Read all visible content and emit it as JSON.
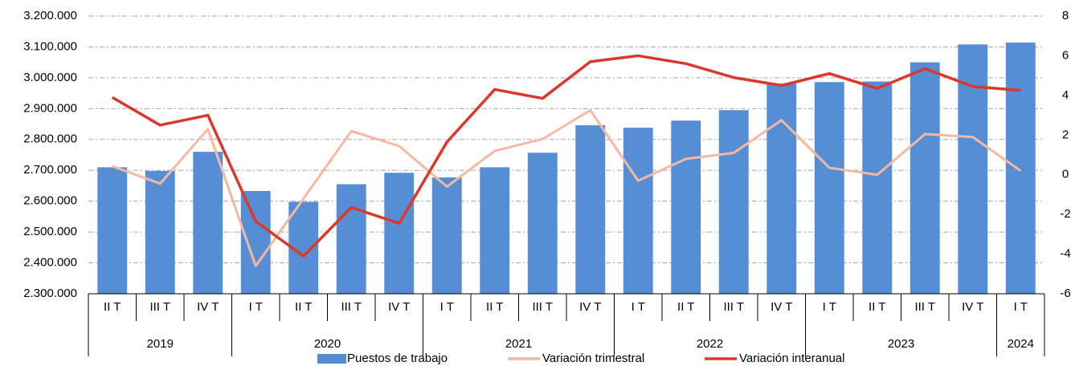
{
  "chart_data": {
    "type": "bar",
    "categories": [
      "II T",
      "III T",
      "IV T",
      "I T",
      "II T",
      "III T",
      "IV T",
      "I T",
      "II T",
      "III T",
      "IV T",
      "I T",
      "II T",
      "III T",
      "IV T",
      "I T",
      "II T",
      "III T",
      "IV T",
      "I T"
    ],
    "years": [
      "2019",
      null,
      null,
      "2020",
      null,
      null,
      null,
      "2021",
      null,
      null,
      null,
      "2022",
      null,
      null,
      null,
      "2023",
      null,
      null,
      null,
      "2024"
    ],
    "series": [
      {
        "name": "Puestos de trabajo",
        "type": "bar",
        "color": "#558ed5",
        "values": [
          2710000,
          2698000,
          2760000,
          2633000,
          2598000,
          2655000,
          2692000,
          2677000,
          2710000,
          2757000,
          2846000,
          2838000,
          2861000,
          2895000,
          2981000,
          2986000,
          2988000,
          3050000,
          3108000,
          3114000
        ]
      },
      {
        "name": "Variación trimestral",
        "type": "line",
        "axis": "y2",
        "color": "#f4b9a0",
        "values": [
          0.43,
          -0.45,
          2.3,
          -4.6,
          -1.2,
          2.2,
          1.45,
          -0.6,
          1.2,
          1.8,
          3.25,
          -0.3,
          0.8,
          1.1,
          2.75,
          0.35,
          0.0,
          2.05,
          1.9,
          0.2
        ]
      },
      {
        "name": "Variación interanual",
        "type": "line",
        "axis": "y2",
        "color": "#d9382b",
        "values": [
          3.9,
          2.5,
          3.0,
          -2.35,
          -4.1,
          -1.65,
          -2.45,
          1.65,
          4.3,
          3.85,
          5.7,
          6.0,
          5.6,
          4.9,
          4.5,
          5.1,
          4.35,
          5.35,
          4.45,
          4.25
        ]
      }
    ],
    "ylim": [
      2300000,
      3200000
    ],
    "yticks": [
      {
        "value": 2300000,
        "label": "2.300.000"
      },
      {
        "value": 2400000,
        "label": "2.400.000"
      },
      {
        "value": 2500000,
        "label": "2.500.000"
      },
      {
        "value": 2600000,
        "label": "2.600.000"
      },
      {
        "value": 2700000,
        "label": "2.700.000"
      },
      {
        "value": 2800000,
        "label": "2.800.000"
      },
      {
        "value": 2900000,
        "label": "2.900.000"
      },
      {
        "value": 3000000,
        "label": "3.000.000"
      },
      {
        "value": 3100000,
        "label": "3.100.000"
      },
      {
        "value": 3200000,
        "label": "3.200.000"
      }
    ],
    "y2lim": [
      -6,
      8
    ],
    "y2ticks": [
      -6,
      -4,
      -2,
      0,
      2,
      4,
      6,
      8
    ],
    "grid": true,
    "legend": "bottom"
  }
}
